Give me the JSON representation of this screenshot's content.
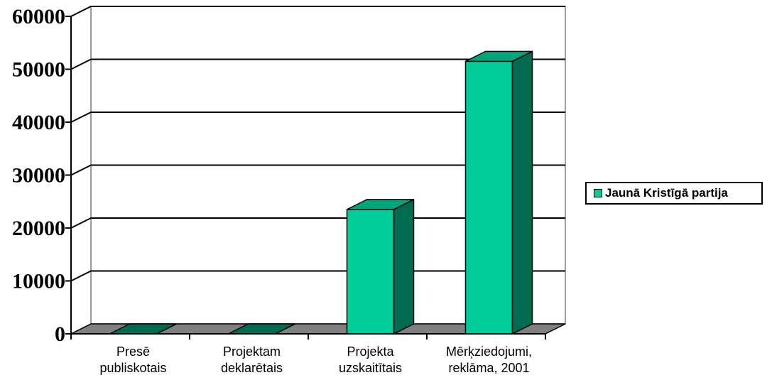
{
  "chart_data": {
    "type": "bar",
    "categories": [
      [
        "Presē",
        "publiskotais"
      ],
      [
        "Projektam",
        "deklarētais"
      ],
      [
        "Projekta",
        "uzskaitītais"
      ],
      [
        "Mērķziedojumi,",
        "reklāma, 2001"
      ]
    ],
    "series": [
      {
        "name": "Jaunā Kristīgā partija",
        "values": [
          0,
          0,
          23500,
          51500
        ]
      }
    ],
    "ylim": [
      0,
      60000
    ],
    "yticks": [
      "0",
      "10000",
      "20000",
      "30000",
      "40000",
      "50000",
      "60000"
    ],
    "grid": true,
    "legend_position": "right",
    "colors": {
      "front": "#00cc99",
      "side": "#006b50",
      "top": "#00a57c",
      "floor": "#808080",
      "grid": "#000000"
    }
  }
}
